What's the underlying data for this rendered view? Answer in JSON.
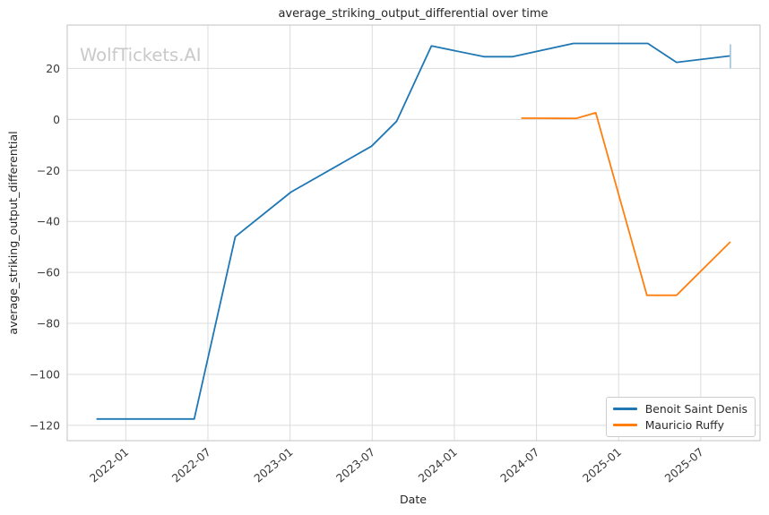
{
  "watermark": {
    "text": "WolfTickets.AI",
    "color": "#c9c9c9"
  },
  "chart_data": {
    "type": "line",
    "title": "average_striking_output_differential over time",
    "xlabel": "Date",
    "ylabel": "average_striking_output_differential",
    "x_tick_labels": [
      "2022-01",
      "2022-07",
      "2023-01",
      "2023-07",
      "2024-01",
      "2024-07",
      "2025-01",
      "2025-07"
    ],
    "y_tick_labels": [
      "20",
      "0",
      "−20",
      "−40",
      "−60",
      "−80",
      "−100",
      "−120"
    ],
    "x_range": [
      "2021-08-23",
      "2025-11-11"
    ],
    "ylim": [
      -126,
      37
    ],
    "grid": true,
    "legend_position": "lower right",
    "series": [
      {
        "name": "Benoit Saint Denis",
        "color": "#1f77b4",
        "end_tick_color": "#9dc3de",
        "points": [
          [
            "2021-10-27",
            -117.5
          ],
          [
            "2022-06-01",
            -117.5
          ],
          [
            "2022-09-01",
            -46
          ],
          [
            "2023-01-03",
            -28.5
          ],
          [
            "2023-06-30",
            -10.5
          ],
          [
            "2023-08-25",
            -0.7
          ],
          [
            "2023-11-11",
            28.8
          ],
          [
            "2024-03-06",
            24.6
          ],
          [
            "2024-05-09",
            24.6
          ],
          [
            "2024-09-22",
            29.8
          ],
          [
            "2025-03-05",
            29.8
          ],
          [
            "2025-05-08",
            22.4
          ],
          [
            "2025-09-06",
            24.9
          ]
        ]
      },
      {
        "name": "Mauricio Ruffy",
        "color": "#ff7f0e",
        "points": [
          [
            "2024-05-28",
            0.5
          ],
          [
            "2024-09-28",
            0.4
          ],
          [
            "2024-11-11",
            2.6
          ],
          [
            "2025-03-03",
            -69
          ],
          [
            "2025-05-08",
            -69
          ],
          [
            "2025-09-06",
            -48
          ]
        ]
      }
    ],
    "appearance": {
      "grid_color": "#dcdcdc",
      "spine_color": "#cfcfcf",
      "tick_text_color": "#3a3a3a",
      "title_color": "#262626"
    }
  }
}
